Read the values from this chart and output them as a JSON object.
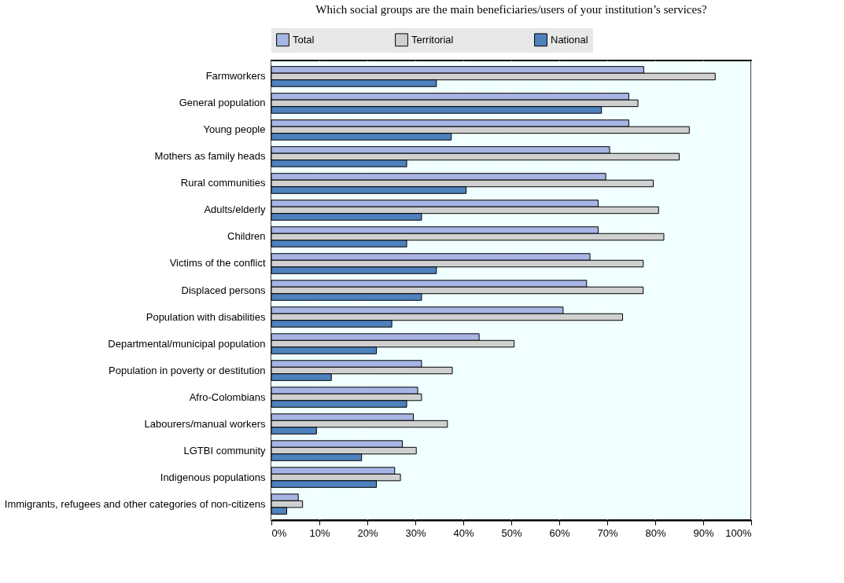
{
  "chart_data": {
    "type": "bar",
    "orientation": "horizontal",
    "title": "Which social groups are the main beneficiaries/users of your institution’s services?",
    "categories": [
      "Farmworkers",
      "General population",
      "Young people",
      "Mothers as family heads",
      "Rural communities",
      "Adults/elderly",
      "Children",
      "Victims of the conflict",
      "Displaced persons",
      "Population with disabilities",
      "Departmental/municipal population",
      "Population in poverty or destitution",
      "Afro-Colombians",
      "Labourers/manual workers",
      "LGTBI community",
      "Indigenous populations",
      "Immigrants, refugees and other categories of non-citizens"
    ],
    "series": [
      {
        "name": "Total",
        "color": "#a6b5e3",
        "values": [
          77.6,
          74.5,
          74.5,
          70.5,
          69.7,
          68.1,
          68.1,
          66.4,
          65.7,
          60.8,
          43.3,
          31.3,
          30.5,
          29.6,
          27.3,
          25.7,
          5.6
        ]
      },
      {
        "name": "Territorial",
        "color": "#d0d0d0",
        "values": [
          92.5,
          76.4,
          87.1,
          85.0,
          79.6,
          80.7,
          81.8,
          77.5,
          77.5,
          73.2,
          50.6,
          37.7,
          31.3,
          36.7,
          30.2,
          26.9,
          6.5
        ]
      },
      {
        "name": "National",
        "color": "#4f81bd",
        "values": [
          34.4,
          68.8,
          37.5,
          28.2,
          40.6,
          31.3,
          28.2,
          34.4,
          31.3,
          25.1,
          21.9,
          12.5,
          28.2,
          9.4,
          18.8,
          21.9,
          3.2
        ]
      }
    ],
    "xlim": [
      0,
      100
    ],
    "xticks": [
      {
        "value": 0,
        "label": "0%"
      },
      {
        "value": 10,
        "label": "10%"
      },
      {
        "value": 20,
        "label": "20%"
      },
      {
        "value": 30,
        "label": "30%"
      },
      {
        "value": 40,
        "label": "40%"
      },
      {
        "value": 50,
        "label": "50%"
      },
      {
        "value": 60,
        "label": "60%"
      },
      {
        "value": 70,
        "label": "70%"
      },
      {
        "value": 80,
        "label": "80%"
      },
      {
        "value": 90,
        "label": "90%"
      },
      {
        "value": 100,
        "label": "100%"
      }
    ],
    "grid": "x",
    "legend": "top"
  }
}
